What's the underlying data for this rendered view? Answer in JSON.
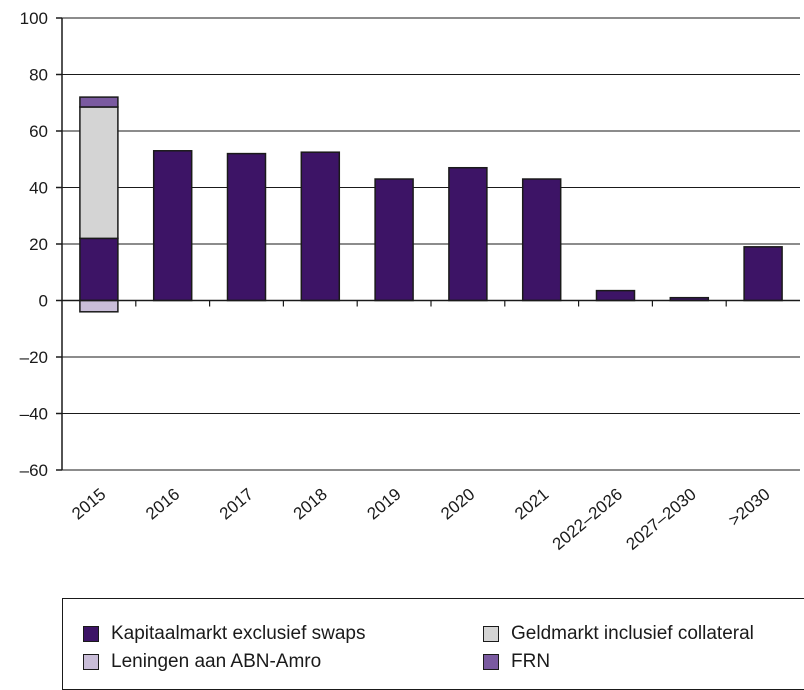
{
  "chart_data": {
    "type": "bar",
    "stacked": true,
    "categories": [
      "2015",
      "2016",
      "2017",
      "2018",
      "2019",
      "2020",
      "2021",
      "2022–2026",
      "2027–2030",
      ">2030"
    ],
    "series": [
      {
        "name": "Kapitaalmarkt exclusief swaps",
        "color": "#3d1466",
        "values": [
          22,
          53,
          52,
          52.5,
          43,
          47,
          43,
          3.5,
          1,
          19
        ]
      },
      {
        "name": "Geldmarkt inclusief collateral",
        "color": "#d4d4d4",
        "values": [
          46.5,
          0,
          0,
          0,
          0,
          0,
          0,
          0,
          0,
          0
        ]
      },
      {
        "name": "Leningen aan ABN-Amro",
        "color": "#c9bdd8",
        "values": [
          -4,
          0,
          0,
          0,
          0,
          0,
          0,
          0,
          0,
          0
        ]
      },
      {
        "name": "FRN",
        "color": "#7a5aa0",
        "values": [
          3.5,
          0,
          0,
          0,
          0,
          0,
          0,
          0,
          0,
          0
        ]
      }
    ],
    "ylim": [
      -60,
      100
    ],
    "yticks": [
      100,
      80,
      60,
      40,
      20,
      0,
      -20,
      -40,
      -60
    ],
    "ytick_labels": [
      "100",
      "80",
      "60",
      "40",
      "20",
      "0",
      "–20",
      "–40",
      "–60"
    ],
    "grid": true,
    "legend_position": "bottom"
  },
  "legend": {
    "items": [
      {
        "label": "Kapitaalmarkt exclusief swaps",
        "color": "#3d1466"
      },
      {
        "label": "Geldmarkt inclusief collateral",
        "color": "#d4d4d4"
      },
      {
        "label": "Leningen aan ABN-Amro",
        "color": "#c9bdd8"
      },
      {
        "label": "FRN",
        "color": "#7a5aa0"
      }
    ]
  }
}
